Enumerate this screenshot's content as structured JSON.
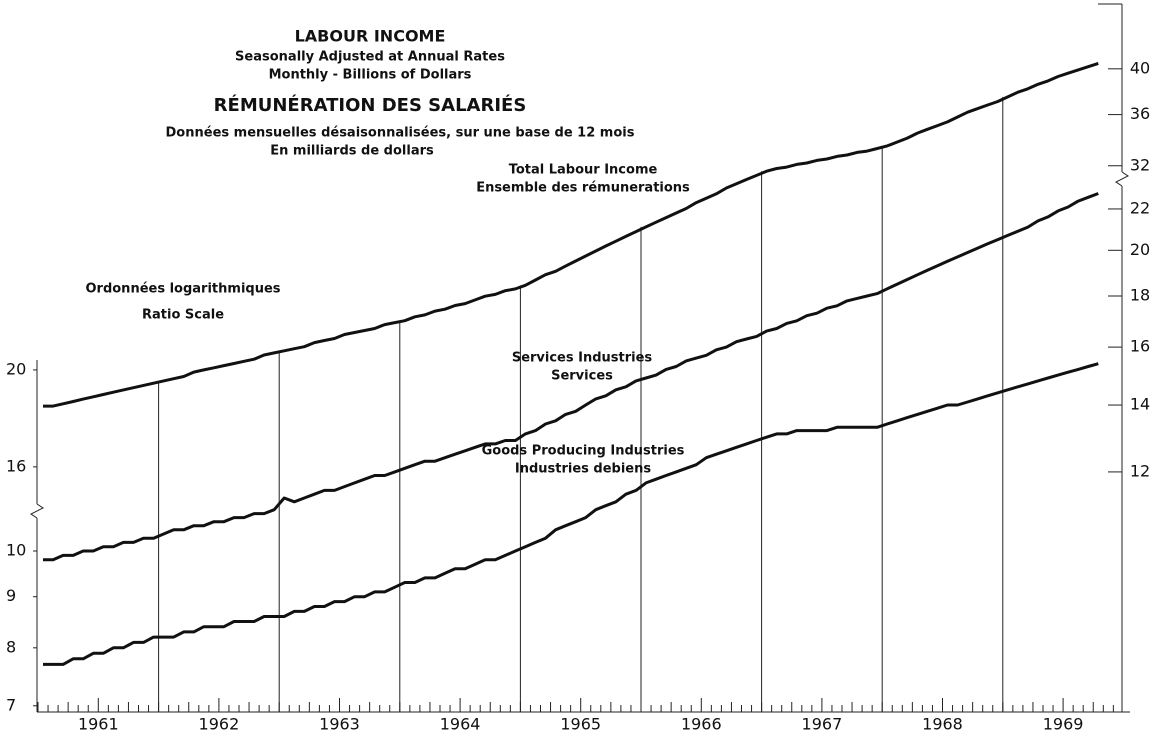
{
  "chart_data": {
    "type": "line",
    "log_scale": true,
    "title": "LABOUR INCOME",
    "subtitle": [
      "Seasonally Adjusted at Annual Rates",
      "Monthly - Billions of Dollars"
    ],
    "title_fr": "RÉMUNÉRATION DES SALARIÉS",
    "subtitle_fr": [
      "Données mensuelles désaisonnalisées, sur une base de 12 mois",
      "En milliards de dollars"
    ],
    "scale_note": [
      "Ordonnées logarithmiques",
      "Ratio Scale"
    ],
    "categories": [
      "1961",
      "1962",
      "1963",
      "1964",
      "1965",
      "1966",
      "1967",
      "1968",
      "1969"
    ],
    "axes": [
      {
        "side": "left",
        "ylim": [
          6.9,
          34.8
        ],
        "yticks": [
          7,
          8,
          9,
          10
        ]
      },
      {
        "side": "right",
        "ylim": [
          6.9,
          34.8
        ],
        "yticks": [
          12,
          14,
          16,
          18,
          20,
          22
        ]
      },
      {
        "side": "left",
        "ylim": [
          9.1,
          45.8
        ],
        "yticks": [
          16,
          20
        ]
      },
      {
        "side": "right",
        "ylim": [
          9.1,
          45.8
        ],
        "yticks": [
          32,
          36,
          40
        ]
      }
    ],
    "series": [
      {
        "name": [
          "Total Labour Income",
          "Ensemble des rémunerations"
        ],
        "color": "#111111",
        "axis": 2,
        "values": [
          [
            18.4,
            18.4,
            18.5,
            18.6,
            18.7,
            18.8,
            18.9,
            19.0,
            19.1,
            19.2,
            19.3,
            19.4
          ],
          [
            19.5,
            19.6,
            19.7,
            19.9,
            20.0,
            20.1,
            20.2,
            20.3,
            20.4,
            20.5,
            20.7,
            20.8
          ],
          [
            20.9,
            21.0,
            21.1,
            21.3,
            21.4,
            21.5,
            21.7,
            21.8,
            21.9,
            22.0,
            22.2,
            22.3
          ],
          [
            22.4,
            22.6,
            22.7,
            22.9,
            23.0,
            23.2,
            23.3,
            23.5,
            23.7,
            23.8,
            24.0,
            24.1
          ],
          [
            24.3,
            24.6,
            24.9,
            25.1,
            25.4,
            25.7,
            26.0,
            26.3,
            26.6,
            26.9,
            27.2,
            27.5
          ],
          [
            27.8,
            28.1,
            28.4,
            28.7,
            29.0,
            29.4,
            29.7,
            30.0,
            30.4,
            30.7,
            31.0,
            31.3
          ],
          [
            31.6,
            31.8,
            31.9,
            32.1,
            32.2,
            32.4,
            32.5,
            32.7,
            32.8,
            33.0,
            33.1,
            33.3
          ],
          [
            33.5,
            33.8,
            34.1,
            34.5,
            34.8,
            35.1,
            35.4,
            35.8,
            36.2,
            36.5,
            36.8,
            37.1
          ],
          [
            37.5,
            37.9,
            38.2,
            38.6,
            38.9,
            39.3,
            39.6,
            39.9,
            40.2,
            40.5
          ]
        ]
      },
      {
        "name": [
          "Services Industries",
          "Services"
        ],
        "color": "#111111",
        "axis": 0,
        "values": [
          [
            9.8,
            9.8,
            9.9,
            9.9,
            10.0,
            10.0,
            10.1,
            10.1,
            10.2,
            10.2,
            10.3,
            10.3
          ],
          [
            10.4,
            10.5,
            10.5,
            10.6,
            10.6,
            10.7,
            10.7,
            10.8,
            10.8,
            10.9,
            10.9,
            11.0
          ],
          [
            11.3,
            11.2,
            11.3,
            11.4,
            11.5,
            11.5,
            11.6,
            11.7,
            11.8,
            11.9,
            11.9,
            12.0
          ],
          [
            12.1,
            12.2,
            12.3,
            12.3,
            12.4,
            12.5,
            12.6,
            12.7,
            12.8,
            12.8,
            12.9,
            12.9
          ],
          [
            13.1,
            13.2,
            13.4,
            13.5,
            13.7,
            13.8,
            14.0,
            14.2,
            14.3,
            14.5,
            14.6,
            14.8
          ],
          [
            14.9,
            15.0,
            15.2,
            15.3,
            15.5,
            15.6,
            15.7,
            15.9,
            16.0,
            16.2,
            16.3,
            16.4
          ],
          [
            16.6,
            16.7,
            16.9,
            17.0,
            17.2,
            17.3,
            17.5,
            17.6,
            17.8,
            17.9,
            18.0,
            18.1
          ],
          [
            18.3,
            18.5,
            18.7,
            18.9,
            19.1,
            19.3,
            19.5,
            19.7,
            19.9,
            20.1,
            20.3,
            20.5
          ],
          [
            20.7,
            20.9,
            21.1,
            21.4,
            21.6,
            21.9,
            22.1,
            22.4,
            22.6,
            22.8
          ]
        ]
      },
      {
        "name": [
          "Goods Producing Industries",
          "Industries debiens"
        ],
        "color": "#111111",
        "axis": 0,
        "values": [
          [
            7.7,
            7.7,
            7.7,
            7.8,
            7.8,
            7.9,
            7.9,
            8.0,
            8.0,
            8.1,
            8.1,
            8.2
          ],
          [
            8.2,
            8.2,
            8.3,
            8.3,
            8.4,
            8.4,
            8.4,
            8.5,
            8.5,
            8.5,
            8.6,
            8.6
          ],
          [
            8.6,
            8.7,
            8.7,
            8.8,
            8.8,
            8.9,
            8.9,
            9.0,
            9.0,
            9.1,
            9.1,
            9.2
          ],
          [
            9.3,
            9.3,
            9.4,
            9.4,
            9.5,
            9.6,
            9.6,
            9.7,
            9.8,
            9.8,
            9.9,
            10.0
          ],
          [
            10.1,
            10.2,
            10.3,
            10.5,
            10.6,
            10.7,
            10.8,
            11.0,
            11.1,
            11.2,
            11.4,
            11.5
          ],
          [
            11.7,
            11.8,
            11.9,
            12.0,
            12.1,
            12.2,
            12.4,
            12.5,
            12.6,
            12.7,
            12.8,
            12.9
          ],
          [
            13.0,
            13.1,
            13.1,
            13.2,
            13.2,
            13.2,
            13.2,
            13.3,
            13.3,
            13.3,
            13.3,
            13.3
          ],
          [
            13.4,
            13.5,
            13.6,
            13.7,
            13.8,
            13.9,
            14.0,
            14.0,
            14.1,
            14.2,
            14.3,
            14.4
          ],
          [
            14.5,
            14.6,
            14.7,
            14.8,
            14.9,
            15.0,
            15.1,
            15.2,
            15.3,
            15.4
          ]
        ]
      }
    ]
  }
}
